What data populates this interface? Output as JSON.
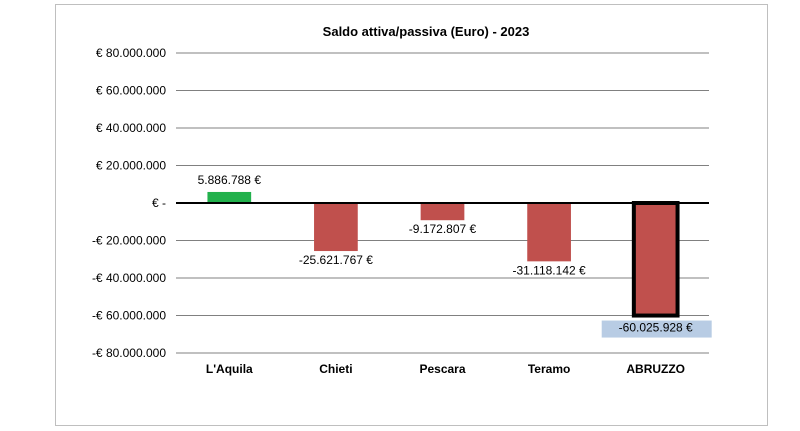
{
  "chart_data": {
    "type": "bar",
    "title": "Saldo attiva/passiva (Euro) - 2023",
    "xlabel": "",
    "ylabel": "",
    "categories": [
      "L'Aquila",
      "Chieti",
      "Pescara",
      "Teramo",
      "ABRUZZO"
    ],
    "values": [
      5886788,
      -25621767,
      -9172807,
      -31118142,
      -60025928
    ],
    "data_labels": [
      "5.886.788 €",
      "-25.621.767 €",
      "-9.172.807 €",
      "-31.118.142 €",
      "-60.025.928 €"
    ],
    "ylim": [
      -80000000,
      80000000
    ],
    "yticks": [
      80000000,
      60000000,
      40000000,
      20000000,
      0,
      -20000000,
      -40000000,
      -60000000,
      -80000000
    ],
    "ytick_labels": [
      "€ 80.000.000",
      "€ 60.000.000",
      "€ 40.000.000",
      "€ 20.000.000",
      "€ -",
      "-€ 20.000.000",
      "-€ 40.000.000",
      "-€ 60.000.000",
      "-€ 80.000.000"
    ],
    "grid": true,
    "legend": "none",
    "colors": {
      "positive": "#22b14c",
      "negative": "#c0504d",
      "highlight_border": "#000000",
      "highlight_label_bg": "#b8cce4",
      "gridline": "#808080",
      "zero_line": "#000000"
    },
    "highlighted_category": "ABRUZZO"
  }
}
